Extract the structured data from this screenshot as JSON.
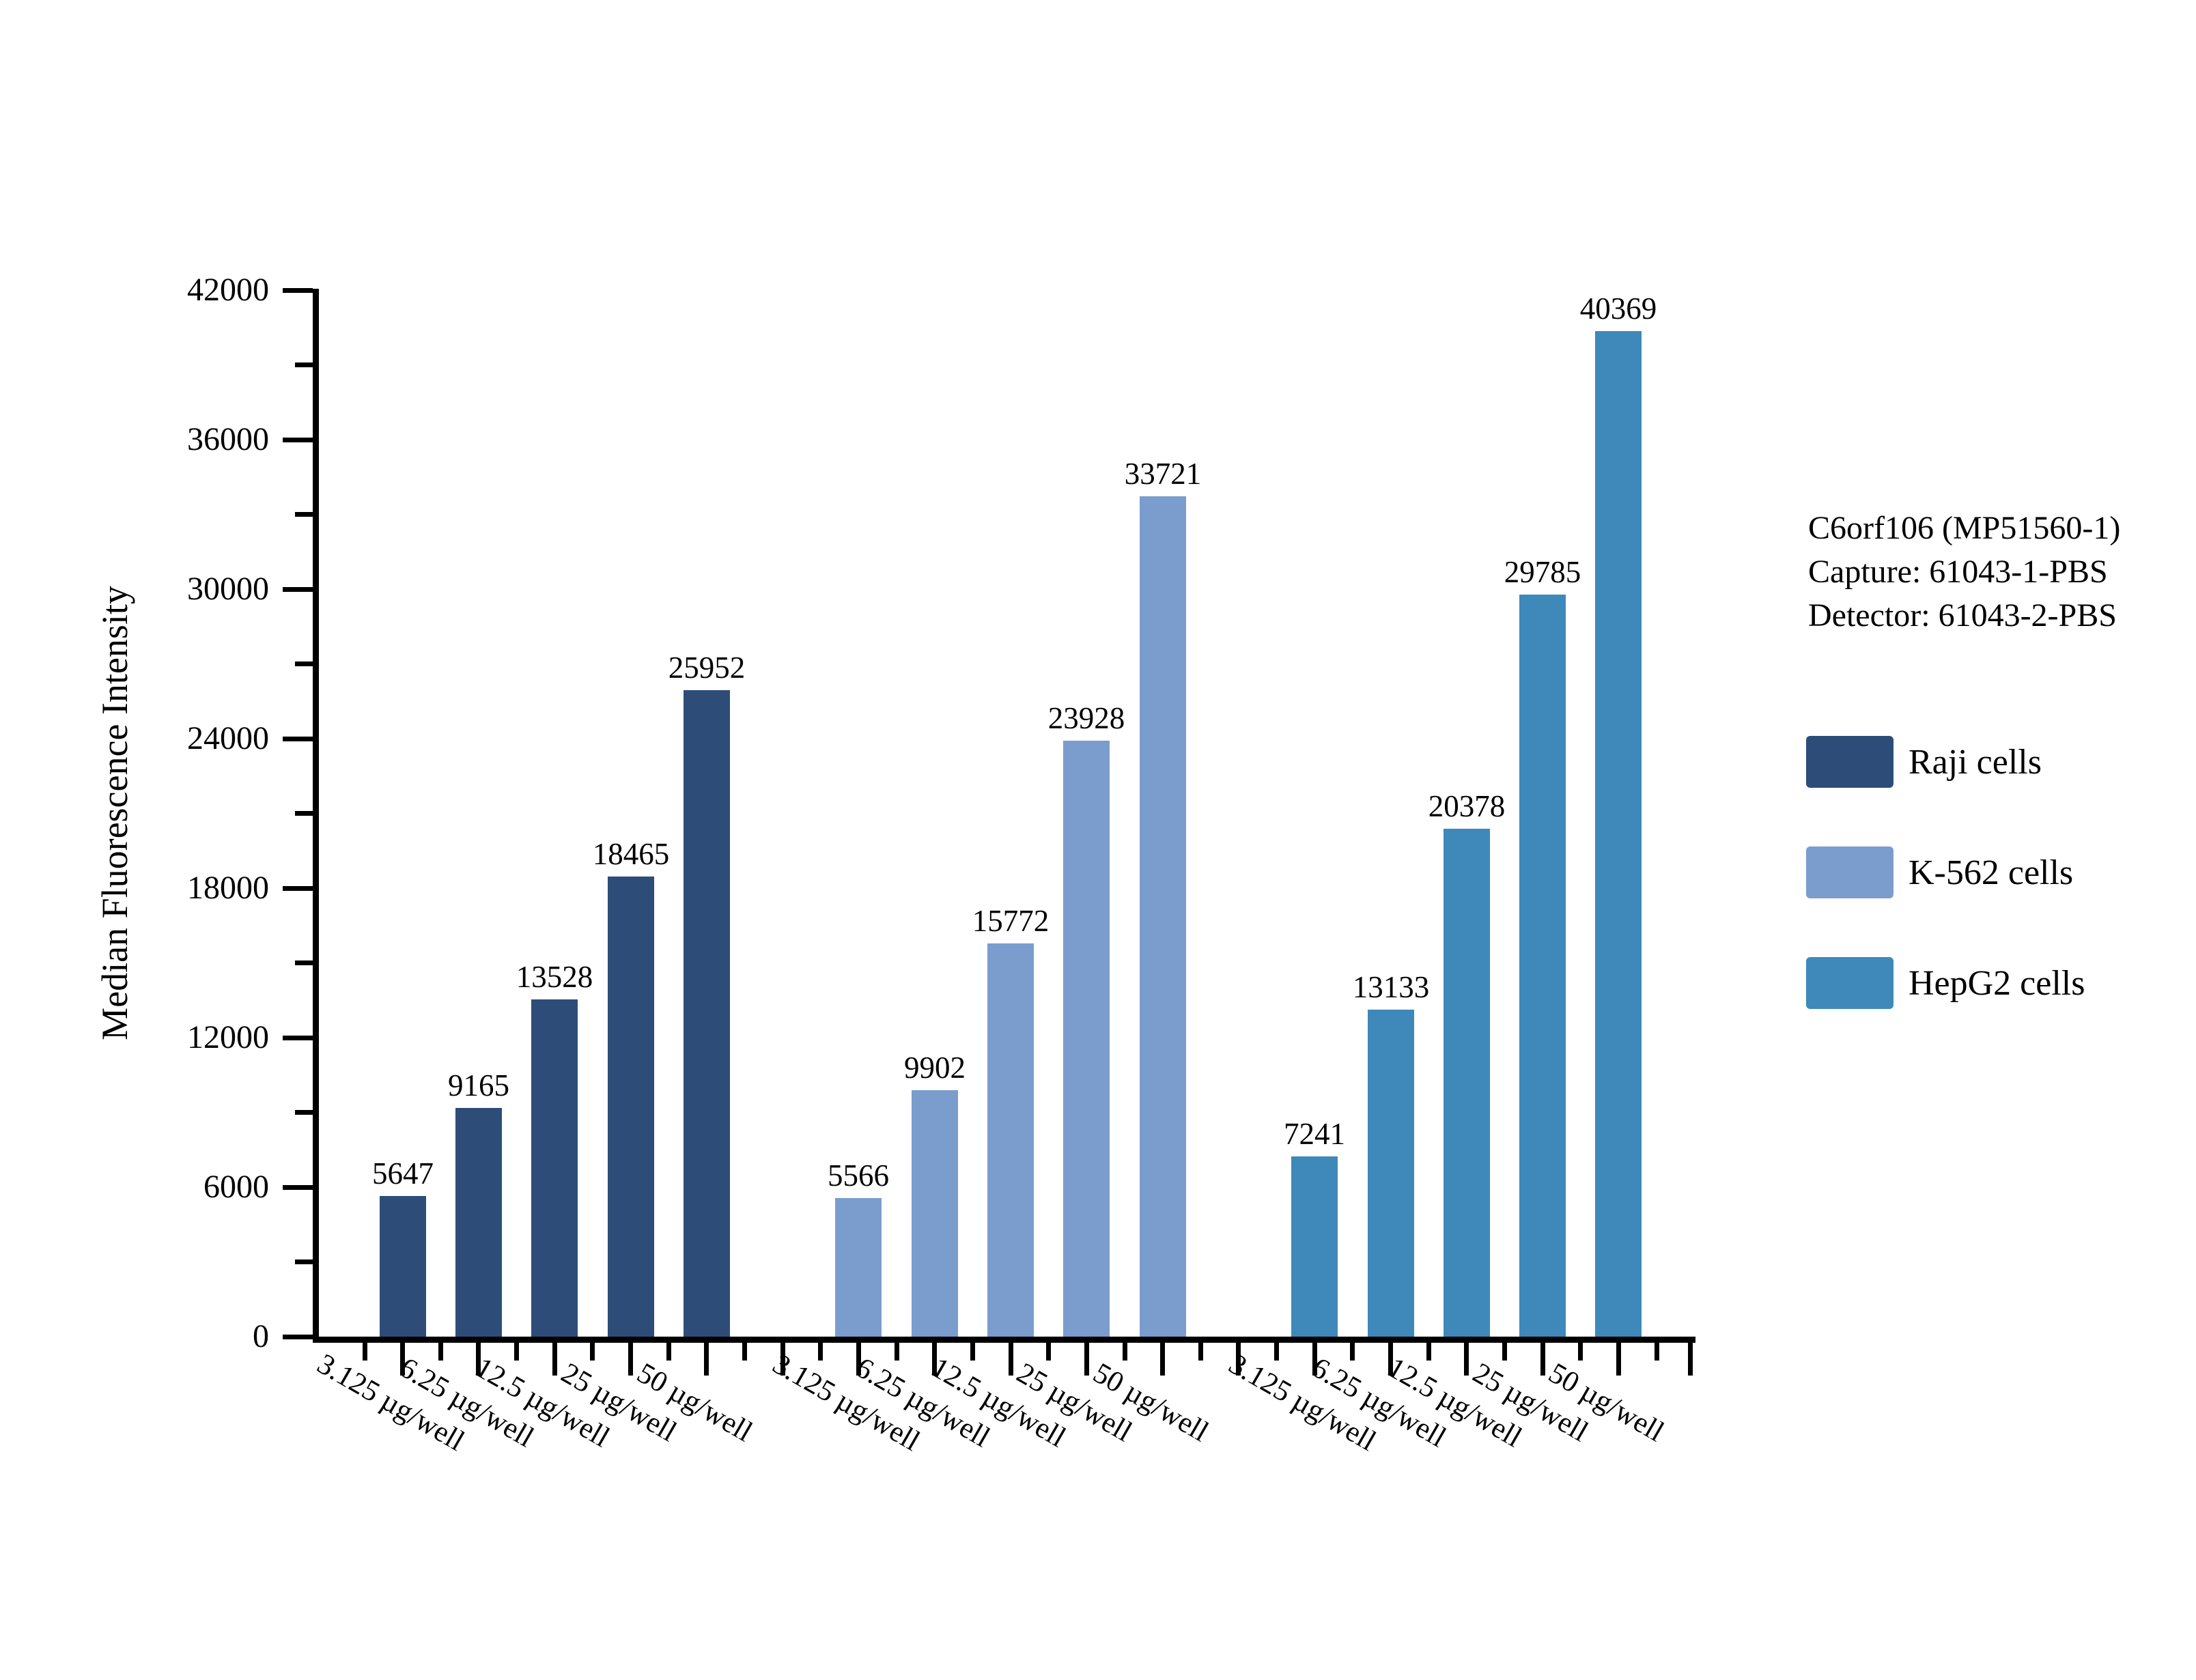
{
  "chart_data": {
    "type": "bar",
    "title": "",
    "ylabel": "Median Fluorescence Intensity",
    "xlabel": "",
    "ylim": [
      0,
      42000
    ],
    "y_major_step": 6000,
    "y_minor_step": 3000,
    "y_tick_labels": [
      "0",
      "6000",
      "12000",
      "18000",
      "24000",
      "30000",
      "36000",
      "42000"
    ],
    "grid": "off",
    "legend_position": "right",
    "categories": [
      "3.125 µg/well",
      "6.25 µg/well",
      "12.5 µg/well",
      "25 µg/well",
      "50 µg/well"
    ],
    "series": [
      {
        "name": "Raji cells",
        "color": "#2D4D78",
        "values": [
          5647,
          9165,
          13528,
          18465,
          25952
        ]
      },
      {
        "name": "K-562 cells",
        "color": "#7B9DCE",
        "values": [
          5566,
          9902,
          15772,
          23928,
          33721
        ]
      },
      {
        "name": "HepG2 cells",
        "color": "#3E89BA",
        "values": [
          7241,
          13133,
          20378,
          29785,
          40369
        ]
      }
    ],
    "annotation_lines": [
      "C6orf106 (MP51560-1)",
      "Capture: 61043-1-PBS",
      "Detector: 61043-2-PBS"
    ]
  }
}
